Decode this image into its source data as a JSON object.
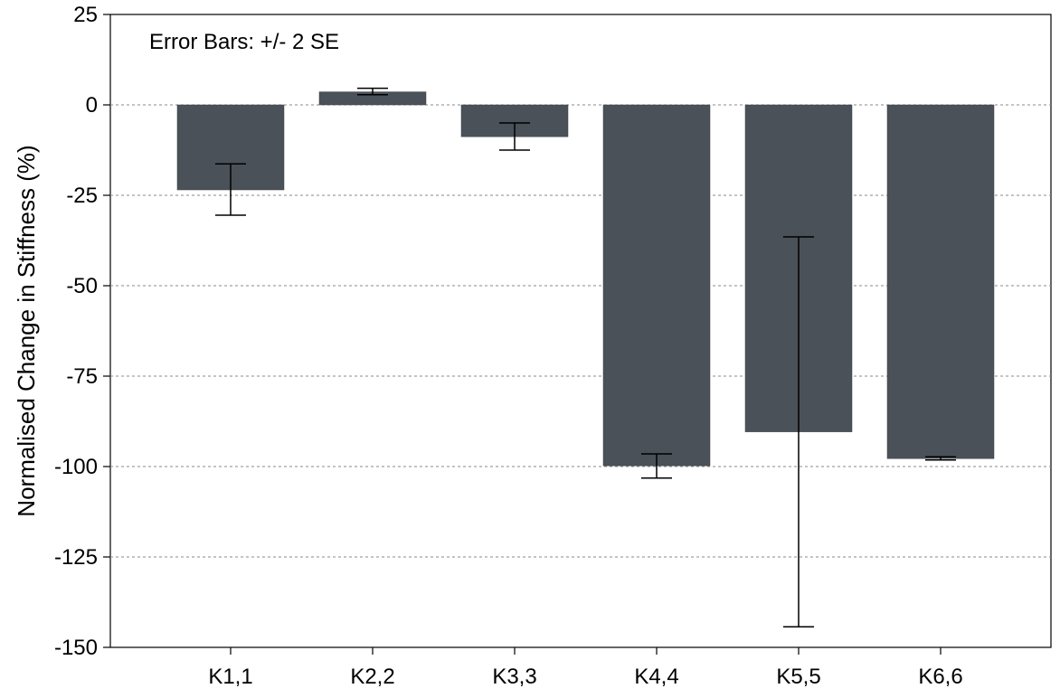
{
  "chart_data": {
    "type": "bar",
    "ylabel": "Normalised Change in Stiffness (%)",
    "xlabel": "",
    "annotation": "Error Bars: +/- 2 SE",
    "categories": [
      "K1,1",
      "K2,2",
      "K3,3",
      "K4,4",
      "K5,5",
      "K6,6"
    ],
    "values": [
      -23.5,
      3.6,
      -8.8,
      -99.8,
      -90.4,
      -97.8
    ],
    "error_low": [
      -30.5,
      2.8,
      -12.5,
      -103.2,
      -144.3,
      -98.2
    ],
    "error_high": [
      -16.3,
      4.6,
      -5.0,
      -96.5,
      -36.5,
      -97.3
    ],
    "ylim": [
      -150,
      25
    ],
    "yticks": [
      25,
      0,
      -25,
      -50,
      -75,
      -100,
      -125,
      -150
    ],
    "grid": true,
    "bar_color": "#4a5158"
  }
}
